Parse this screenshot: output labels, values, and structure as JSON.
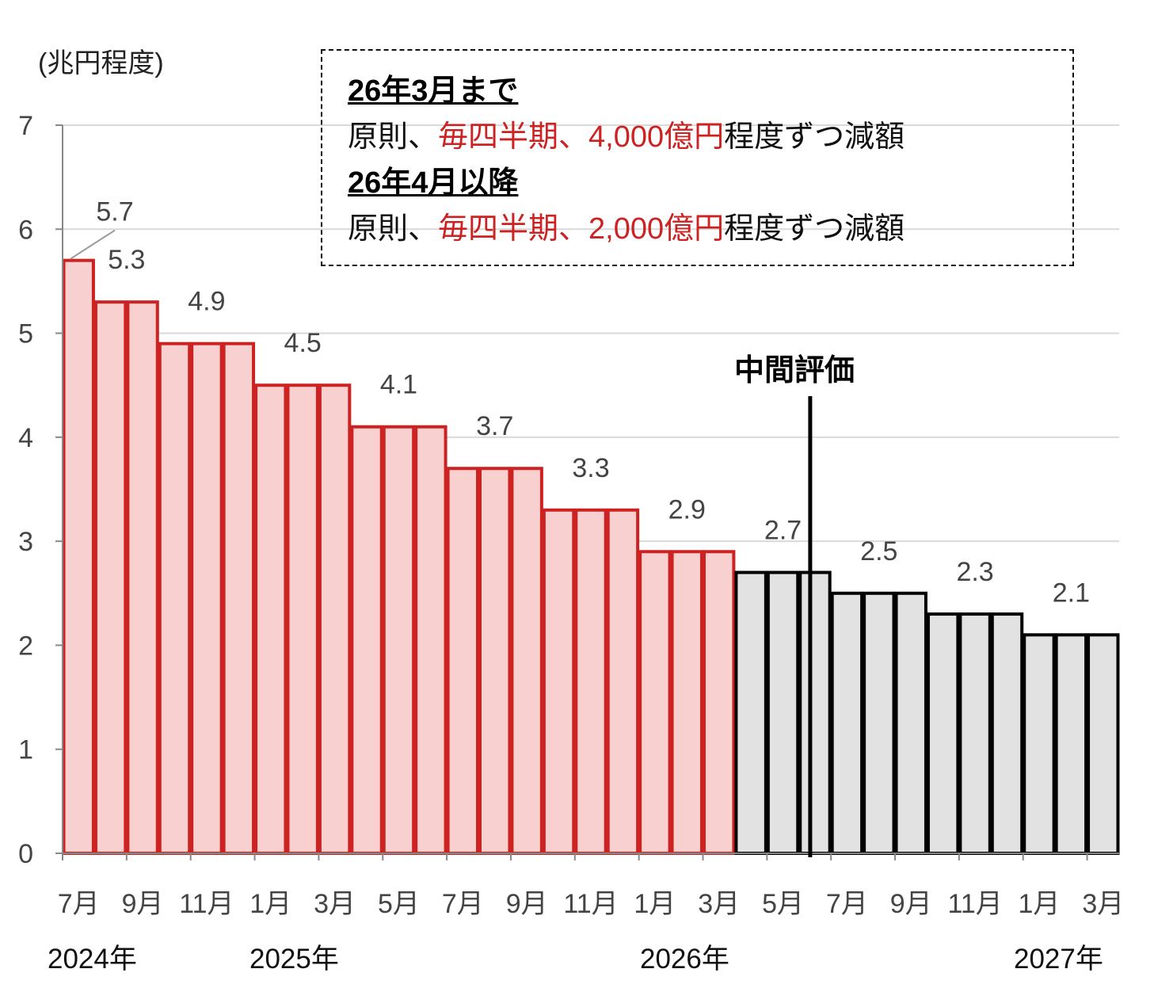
{
  "unit_label": "(兆円程度)",
  "note": {
    "heading1": "26年3月まで",
    "line1": {
      "pre": "原則、",
      "red": "毎四半期、4,000億円",
      "post": "程度ずつ減額"
    },
    "heading2": "26年4月以降",
    "line2": {
      "pre": "原則、",
      "red": "毎四半期、2,000億円",
      "post": "程度ずつ減額"
    }
  },
  "midterm_label": "中間評価",
  "years": [
    "2024年",
    "2025年",
    "2026年",
    "2027年"
  ],
  "colors": {
    "red_edge": "#cc2222",
    "red_fill": "#f8d0d0",
    "black_edge": "#000000",
    "gray_fill": "#e2e2e2",
    "grid": "#d9d9d9",
    "axis": "#888888",
    "label": "#444444"
  },
  "chart_data": {
    "type": "bar",
    "ylim": [
      0,
      7
    ],
    "yticks": [
      0,
      1,
      2,
      3,
      4,
      5,
      6,
      7
    ],
    "grid": true,
    "x_tick_labels": [
      "7月",
      "9月",
      "11月",
      "1月",
      "3月",
      "5月",
      "7月",
      "9月",
      "11月",
      "1月",
      "3月",
      "5月",
      "7月",
      "9月",
      "11月",
      "1月",
      "3月"
    ],
    "categories": [
      "2024-07",
      "2024-08",
      "2024-09",
      "2024-10",
      "2024-11",
      "2024-12",
      "2025-01",
      "2025-02",
      "2025-03",
      "2025-04",
      "2025-05",
      "2025-06",
      "2025-07",
      "2025-08",
      "2025-09",
      "2025-10",
      "2025-11",
      "2025-12",
      "2026-01",
      "2026-02",
      "2026-03",
      "2026-04",
      "2026-05",
      "2026-06",
      "2026-07",
      "2026-08",
      "2026-09",
      "2026-10",
      "2026-11",
      "2026-12",
      "2027-01",
      "2027-02",
      "2027-03"
    ],
    "values": [
      5.7,
      5.3,
      5.3,
      4.9,
      4.9,
      4.9,
      4.5,
      4.5,
      4.5,
      4.1,
      4.1,
      4.1,
      3.7,
      3.7,
      3.7,
      3.3,
      3.3,
      3.3,
      2.9,
      2.9,
      2.9,
      2.7,
      2.7,
      2.7,
      2.5,
      2.5,
      2.5,
      2.3,
      2.3,
      2.3,
      2.1,
      2.1,
      2.1
    ],
    "step_labels": [
      "5.7",
      "5.3",
      "4.9",
      "4.5",
      "4.1",
      "3.7",
      "3.3",
      "2.9",
      "2.7",
      "2.5",
      "2.3",
      "2.1"
    ],
    "planned_until": "2026-03"
  }
}
